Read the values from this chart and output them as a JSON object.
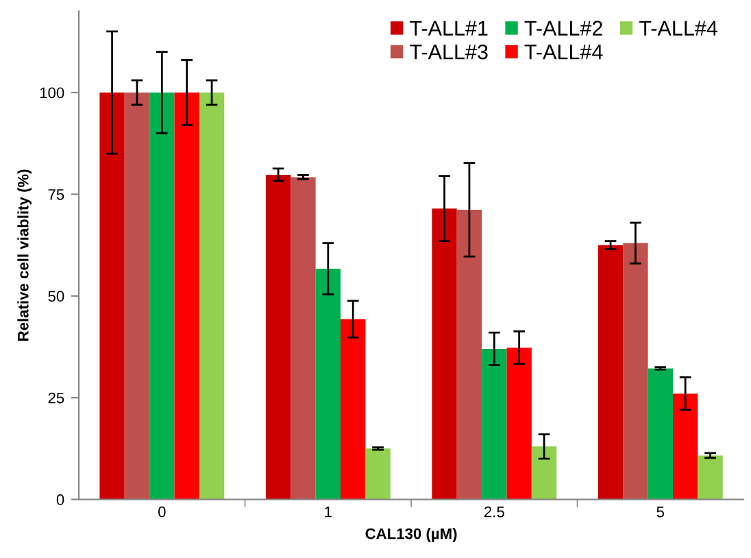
{
  "chart_data": {
    "type": "bar",
    "xlabel": "CAL130 (µM)",
    "ylabel": "Relative cell viablity (%)",
    "categories": [
      "0",
      "1",
      "2.5",
      "5"
    ],
    "ylim": [
      0,
      120
    ],
    "yticks": [
      0,
      25,
      50,
      75,
      100
    ],
    "grid": false,
    "legend": "top right",
    "series": [
      {
        "name": "T-ALL#1",
        "color": "#cc0000",
        "values": [
          100,
          79.8,
          71.5,
          62.5
        ],
        "errors": [
          15,
          1.5,
          8,
          1
        ]
      },
      {
        "name": "T-ALL#3",
        "color": "#c0504d",
        "values": [
          100,
          79.2,
          71.2,
          63
        ],
        "errors": [
          3,
          0.5,
          11.5,
          5
        ]
      },
      {
        "name": "T-ALL#2",
        "color": "#00b050",
        "values": [
          100,
          56.7,
          37,
          32.2
        ],
        "errors": [
          10,
          6.3,
          4,
          0.3
        ]
      },
      {
        "name": "T-ALL#4",
        "color": "#ff0000",
        "values": [
          100,
          44.3,
          37.3,
          26
        ],
        "errors": [
          8,
          4.5,
          4,
          4
        ]
      },
      {
        "name": "T-ALL#4",
        "color": "#92d050",
        "values": [
          100,
          12.5,
          13,
          10.8
        ],
        "errors": [
          3,
          0.3,
          3,
          0.6
        ]
      }
    ]
  }
}
